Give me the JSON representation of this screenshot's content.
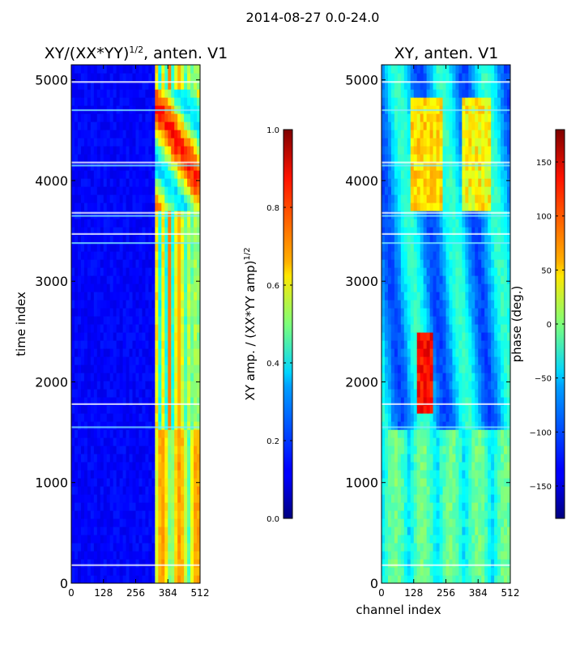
{
  "figure": {
    "suptitle": "2014-08-27 0.0-24.0"
  },
  "chart_data": [
    {
      "type": "heatmap",
      "title_main": "XY/(XX*YY)",
      "title_exp": "1/2",
      "title_tail": ", anten. V1",
      "xlabel": "",
      "ylabel": "time index",
      "xlim": [
        0,
        512
      ],
      "ylim": [
        0,
        5150
      ],
      "xticks": [
        "0",
        "128",
        "256",
        "384",
        "512"
      ],
      "xtick_values": [
        0,
        128,
        256,
        384,
        512
      ],
      "yticks": [
        "0",
        "1000",
        "2000",
        "3000",
        "4000",
        "5000"
      ],
      "ytick_values": [
        0,
        1000,
        2000,
        3000,
        4000,
        5000
      ],
      "colormap": "jet",
      "colorbar": {
        "label_main": "XY amp. / (XX*YY amp)",
        "label_exp": "1/2",
        "range": [
          0,
          1
        ],
        "ticks": [
          "0.0",
          "0.2",
          "0.4",
          "0.6",
          "0.8",
          "1.0"
        ],
        "tick_values": [
          0,
          0.2,
          0.4,
          0.6,
          0.8,
          1.0
        ]
      }
    },
    {
      "type": "heatmap",
      "title_main": "XY, anten. V1",
      "xlabel": "channel index",
      "ylabel": "",
      "xlim": [
        0,
        512
      ],
      "ylim": [
        0,
        5150
      ],
      "xticks": [
        "0",
        "128",
        "256",
        "384",
        "512"
      ],
      "xtick_values": [
        0,
        128,
        256,
        384,
        512
      ],
      "yticks": [
        "0",
        "1000",
        "2000",
        "3000",
        "4000",
        "5000"
      ],
      "ytick_values": [
        0,
        1000,
        2000,
        3000,
        4000,
        5000
      ],
      "colormap": "jet",
      "colorbar": {
        "label_main": "phase (deg.)",
        "range": [
          -180,
          180
        ],
        "ticks": [
          "−150",
          "−100",
          "−50",
          "0",
          "50",
          "100",
          "150"
        ],
        "tick_values": [
          -150,
          -100,
          -50,
          0,
          50,
          100,
          150
        ]
      }
    }
  ]
}
